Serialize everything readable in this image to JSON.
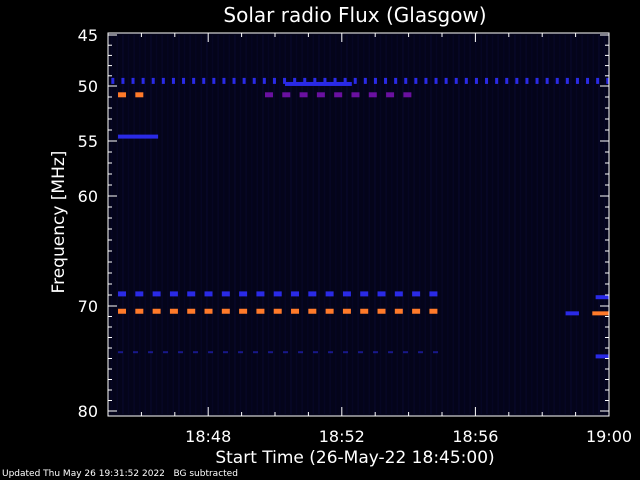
{
  "footer": {
    "updated": "Updated Thu May 26 19:31:52 2022",
    "note": "BG subtracted"
  },
  "chart_data": {
    "type": "heatmap",
    "title": "Solar radio Flux (Glasgow)",
    "xlabel": "Start Time (26-May-22 18:45:00)",
    "ylabel": "Frequency [MHz]",
    "xlim_minutes": [
      0,
      15
    ],
    "ylim_mhz": [
      45,
      80
    ],
    "x_ticks": [
      {
        "minute": 3,
        "label": "18:48"
      },
      {
        "minute": 7,
        "label": "18:52"
      },
      {
        "minute": 11,
        "label": "18:56"
      },
      {
        "minute": 15,
        "label": "19:00"
      }
    ],
    "y_ticks": [
      {
        "mhz": 45,
        "label": "45"
      },
      {
        "mhz": 50,
        "label": "50"
      },
      {
        "mhz": 55,
        "label": "55"
      },
      {
        "mhz": 60,
        "label": "60"
      },
      {
        "mhz": 70,
        "label": "70"
      },
      {
        "mhz": 80,
        "label": "80"
      }
    ],
    "colors": {
      "background": "#000000",
      "plot_bg": "#04041a",
      "blue": "#2a2ae6",
      "purple": "#6a10a0",
      "orange": "#ff7a2a",
      "axis": "#ffffff"
    },
    "bands": [
      {
        "mhz": 49.5,
        "start": 0.1,
        "end": 15.0,
        "color": "blue",
        "style": "dotted"
      },
      {
        "mhz": 50.8,
        "start": 0.3,
        "end": 1.5,
        "color": "orange",
        "style": "dashed"
      },
      {
        "mhz": 50.8,
        "start": 4.7,
        "end": 9.5,
        "color": "purple",
        "style": "dashed"
      },
      {
        "mhz": 49.8,
        "start": 5.3,
        "end": 7.3,
        "color": "blue",
        "style": "solid"
      },
      {
        "mhz": 54.6,
        "start": 0.3,
        "end": 1.5,
        "color": "blue",
        "style": "solid"
      },
      {
        "mhz": 68.9,
        "start": 0.3,
        "end": 10.0,
        "color": "blue",
        "style": "dashed"
      },
      {
        "mhz": 70.5,
        "start": 0.3,
        "end": 10.0,
        "color": "orange",
        "style": "dashed"
      },
      {
        "mhz": 74.4,
        "start": 0.3,
        "end": 10.0,
        "color": "blue",
        "style": "dotted-faint"
      },
      {
        "mhz": 70.7,
        "start": 14.5,
        "end": 15.0,
        "color": "orange",
        "style": "solid"
      },
      {
        "mhz": 70.7,
        "start": 13.7,
        "end": 14.1,
        "color": "blue",
        "style": "solid"
      },
      {
        "mhz": 69.2,
        "start": 14.6,
        "end": 15.0,
        "color": "blue",
        "style": "solid"
      },
      {
        "mhz": 74.8,
        "start": 14.6,
        "end": 15.0,
        "color": "blue",
        "style": "solid"
      }
    ]
  }
}
